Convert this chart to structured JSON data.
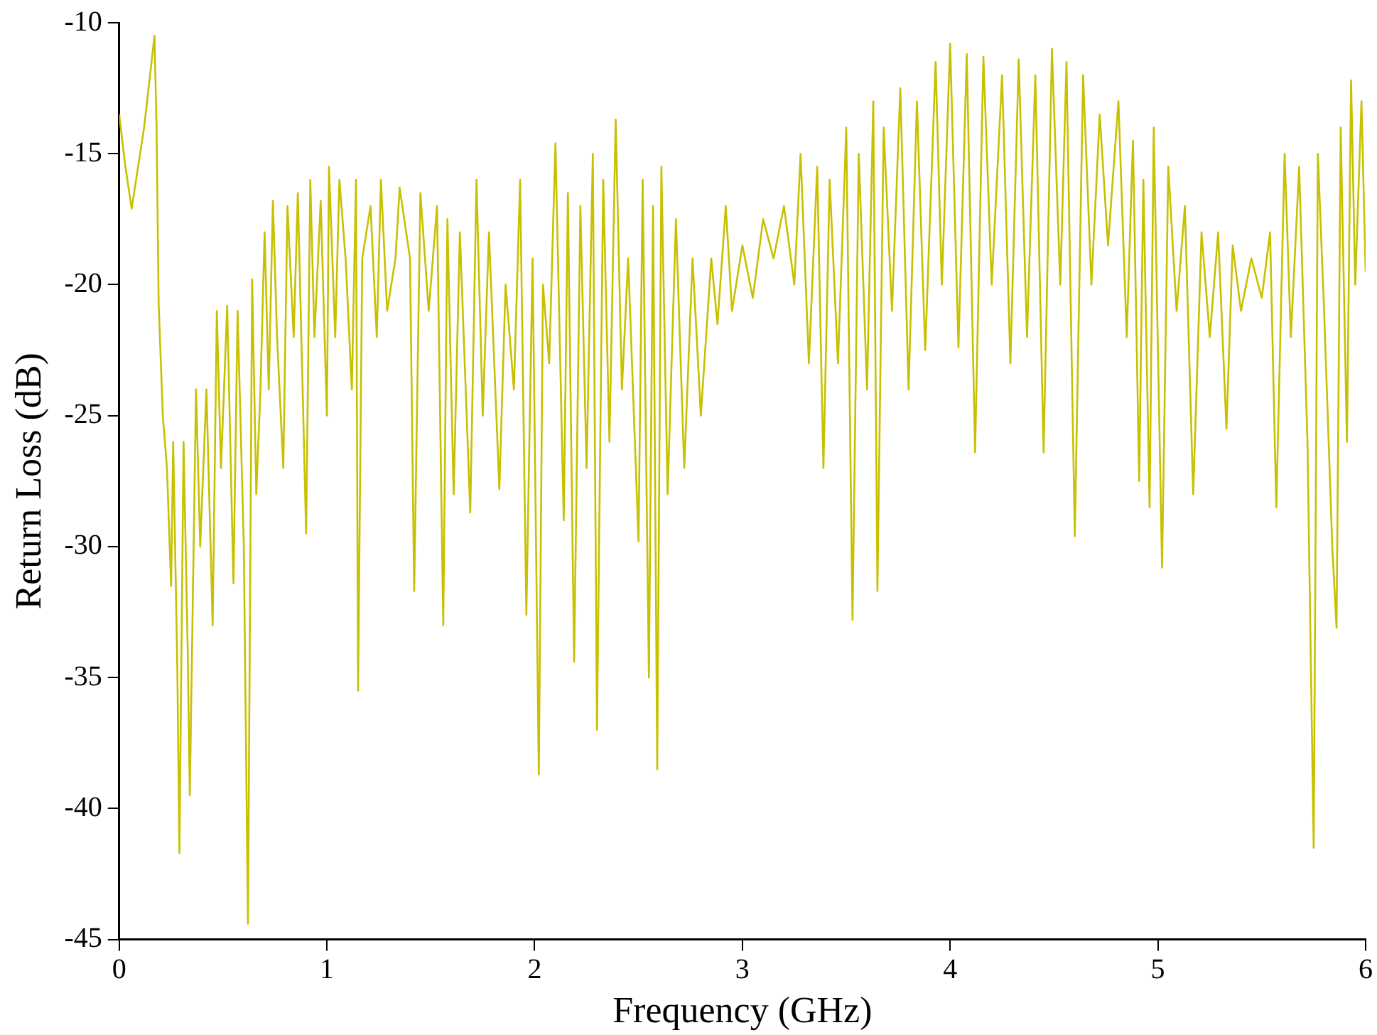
{
  "chart_data": {
    "type": "line",
    "xlabel": "Frequency (GHz)",
    "ylabel": "Return Loss (dB)",
    "xlim": [
      0,
      6
    ],
    "xticks": [
      0,
      1,
      2,
      3,
      4,
      5,
      6
    ],
    "ylim": [
      -45,
      -10
    ],
    "yticks": [
      -45,
      -40,
      -35,
      -30,
      -25,
      -20,
      -15,
      -10
    ],
    "grid": false,
    "legend": false,
    "marker": "none",
    "line_style": "solid",
    "series": [
      {
        "color": "#c8c000",
        "x": [
          0,
          0.03,
          0.06,
          0.12,
          0.17,
          0.18,
          0.19,
          0.21,
          0.23,
          0.25,
          0.26,
          0.28,
          0.29,
          0.31,
          0.33,
          0.34,
          0.37,
          0.39,
          0.42,
          0.45,
          0.47,
          0.49,
          0.52,
          0.55,
          0.57,
          0.6,
          0.61,
          0.62,
          0.64,
          0.66,
          0.68,
          0.7,
          0.72,
          0.74,
          0.76,
          0.79,
          0.81,
          0.84,
          0.86,
          0.9,
          0.92,
          0.94,
          0.97,
          1.0,
          1.01,
          1.04,
          1.06,
          1.09,
          1.12,
          1.14,
          1.15,
          1.17,
          1.21,
          1.24,
          1.26,
          1.29,
          1.33,
          1.35,
          1.4,
          1.42,
          1.45,
          1.49,
          1.53,
          1.56,
          1.58,
          1.61,
          1.64,
          1.69,
          1.72,
          1.75,
          1.78,
          1.83,
          1.86,
          1.9,
          1.93,
          1.96,
          1.99,
          2.02,
          2.04,
          2.07,
          2.1,
          2.14,
          2.16,
          2.19,
          2.22,
          2.25,
          2.28,
          2.3,
          2.33,
          2.36,
          2.39,
          2.42,
          2.45,
          2.5,
          2.52,
          2.55,
          2.57,
          2.59,
          2.61,
          2.64,
          2.68,
          2.72,
          2.76,
          2.8,
          2.85,
          2.88,
          2.92,
          2.95,
          3.0,
          3.05,
          3.1,
          3.15,
          3.2,
          3.25,
          3.28,
          3.32,
          3.36,
          3.39,
          3.42,
          3.46,
          3.5,
          3.53,
          3.56,
          3.6,
          3.63,
          3.65,
          3.68,
          3.72,
          3.76,
          3.8,
          3.84,
          3.88,
          3.93,
          3.96,
          4.0,
          4.04,
          4.08,
          4.12,
          4.16,
          4.2,
          4.25,
          4.29,
          4.33,
          4.37,
          4.41,
          4.45,
          4.49,
          4.53,
          4.56,
          4.6,
          4.64,
          4.68,
          4.72,
          4.76,
          4.81,
          4.85,
          4.88,
          4.91,
          4.93,
          4.96,
          4.98,
          5.02,
          5.05,
          5.09,
          5.13,
          5.17,
          5.21,
          5.25,
          5.29,
          5.33,
          5.36,
          5.4,
          5.45,
          5.5,
          5.54,
          5.57,
          5.61,
          5.64,
          5.68,
          5.72,
          5.75,
          5.77,
          5.8,
          5.84,
          5.86,
          5.88,
          5.91,
          5.93,
          5.95,
          5.98,
          6.0
        ],
        "values": [
          -13.5,
          -15.5,
          -17.1,
          -14,
          -10.5,
          -14,
          -20.7,
          -25,
          -27,
          -31.5,
          -26,
          -34.7,
          -41.7,
          -26,
          -34,
          -39.5,
          -24,
          -30,
          -24,
          -33,
          -21,
          -27,
          -20.8,
          -31.4,
          -21,
          -30,
          -37.2,
          -44.4,
          -19.8,
          -28,
          -24,
          -18,
          -24,
          -16.8,
          -22,
          -27,
          -17,
          -22,
          -16.5,
          -29.5,
          -16,
          -22,
          -16.8,
          -25,
          -15.5,
          -22,
          -16,
          -19,
          -24,
          -16,
          -35.5,
          -19,
          -17,
          -22,
          -16,
          -21,
          -19,
          -16.3,
          -19,
          -31.7,
          -16.5,
          -21,
          -17,
          -33,
          -17.5,
          -28,
          -18,
          -28.7,
          -16,
          -25,
          -18,
          -27.8,
          -20,
          -24,
          -16,
          -32.6,
          -19,
          -38.7,
          -20,
          -23,
          -14.6,
          -29,
          -16.5,
          -34.4,
          -17,
          -27,
          -15,
          -37,
          -16,
          -26,
          -13.7,
          -24,
          -19,
          -29.8,
          -16,
          -35,
          -17,
          -38.5,
          -15.5,
          -28,
          -17.5,
          -27,
          -19,
          -25,
          -19,
          -21.5,
          -17,
          -21,
          -18.5,
          -20.5,
          -17.5,
          -19,
          -17,
          -20,
          -15,
          -23,
          -15.5,
          -27,
          -16,
          -23,
          -14,
          -32.8,
          -15,
          -24,
          -13,
          -31.7,
          -14,
          -21,
          -12.5,
          -24,
          -13,
          -22.5,
          -11.5,
          -20,
          -10.8,
          -22.4,
          -11.2,
          -26.4,
          -11.3,
          -20,
          -12,
          -23,
          -11.4,
          -22,
          -12,
          -26.4,
          -11,
          -20,
          -11.5,
          -29.6,
          -12,
          -20,
          -13.5,
          -18.5,
          -13,
          -22,
          -14.5,
          -27.5,
          -16,
          -28.5,
          -14,
          -30.8,
          -15.5,
          -21,
          -17,
          -28,
          -18,
          -22,
          -18,
          -25.5,
          -18.5,
          -21,
          -19,
          -20.5,
          -18,
          -28.5,
          -15,
          -22,
          -15.5,
          -26,
          -41.5,
          -15,
          -21,
          -30.1,
          -33.1,
          -14,
          -26,
          -12.2,
          -20,
          -13,
          -19.5
        ]
      }
    ]
  }
}
